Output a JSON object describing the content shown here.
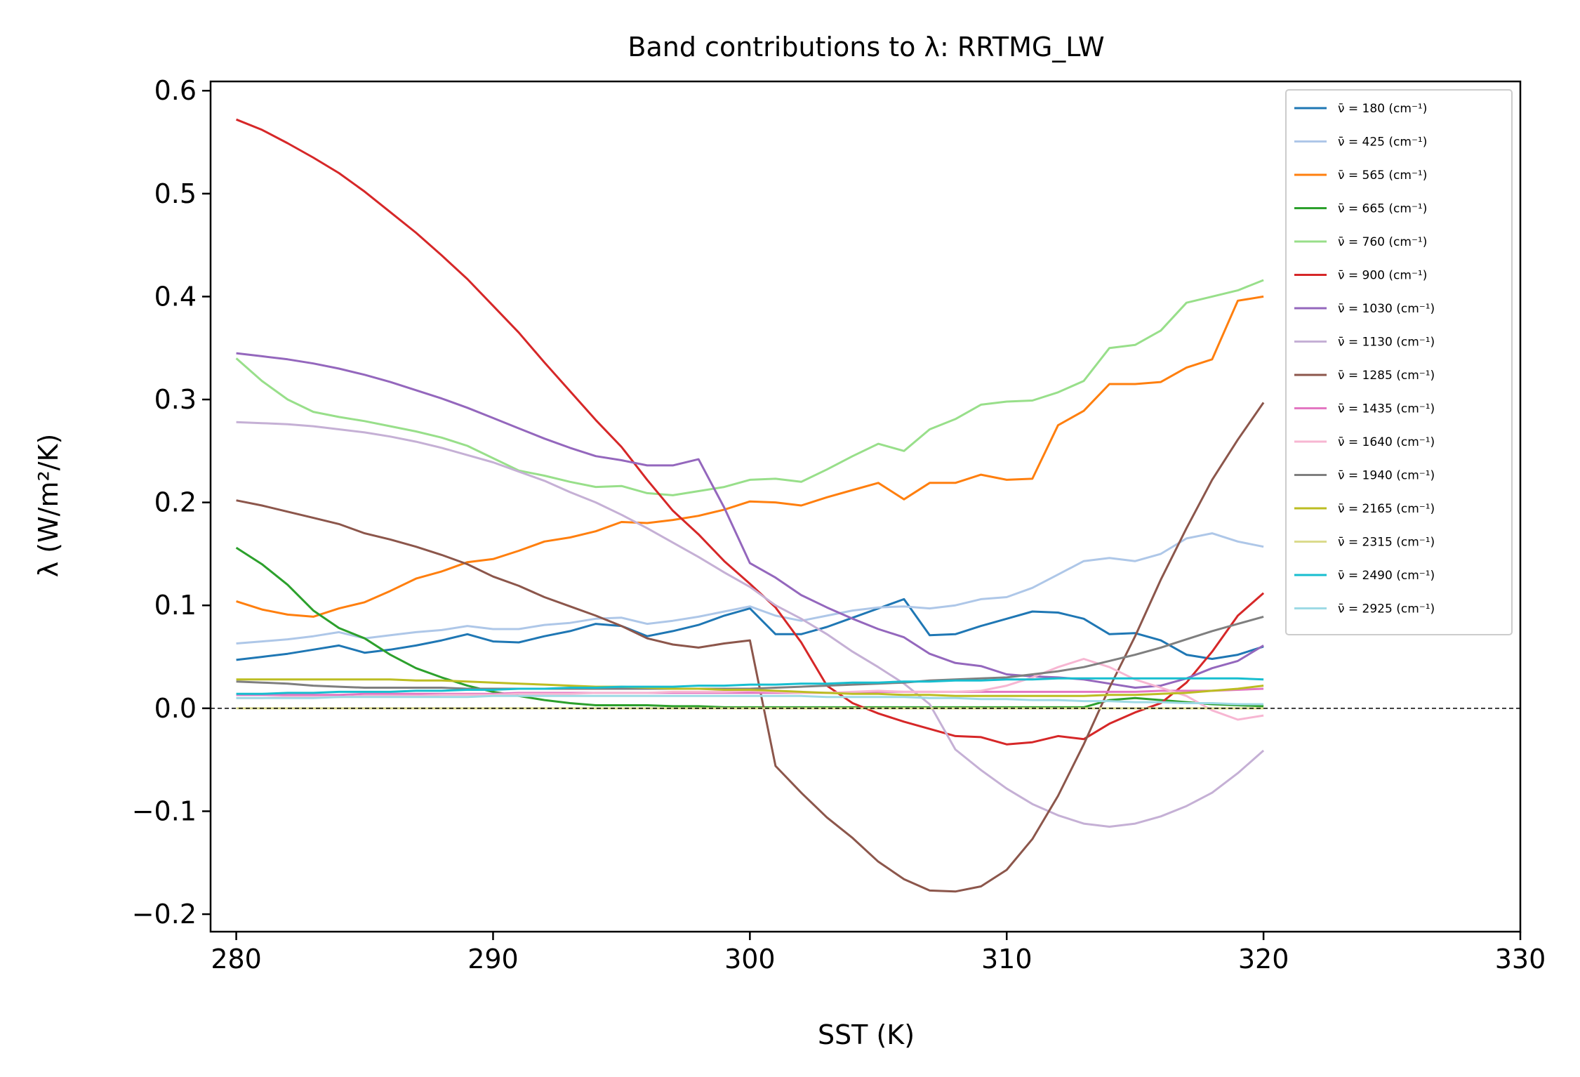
{
  "chart_data": {
    "type": "line",
    "title": "Band contributions to λ: RRTMG_LW",
    "xlabel": "SST (K)",
    "ylabel": "λ (W/m²/K)",
    "xlim": [
      279,
      330
    ],
    "ylim": [
      -0.217,
      0.609
    ],
    "xticks": [
      280,
      290,
      300,
      310,
      320,
      330
    ],
    "xtick_labels": [
      "280",
      "290",
      "300",
      "310",
      "320",
      "330"
    ],
    "yticks": [
      -0.2,
      -0.1,
      0.0,
      0.1,
      0.2,
      0.3,
      0.4,
      0.5,
      0.6
    ],
    "ytick_labels": [
      "−0.2",
      "−0.1",
      "0.0",
      "0.1",
      "0.2",
      "0.3",
      "0.4",
      "0.5",
      "0.6"
    ],
    "zero_line": "dashed",
    "legend_position": "top-right",
    "grid": false,
    "x": [
      280,
      281,
      282,
      283,
      284,
      285,
      286,
      287,
      288,
      289,
      290,
      291,
      292,
      293,
      294,
      295,
      296,
      297,
      298,
      299,
      300,
      301,
      302,
      303,
      304,
      305,
      306,
      307,
      308,
      309,
      310,
      311,
      312,
      313,
      314,
      315,
      316,
      317,
      318,
      319,
      320
    ],
    "series": [
      {
        "name": "ν̄ = 180 (cm⁻¹)",
        "color": "#1f77b4",
        "values": [
          0.047,
          0.05,
          0.053,
          0.057,
          0.061,
          0.054,
          0.057,
          0.061,
          0.066,
          0.072,
          0.065,
          0.064,
          0.07,
          0.075,
          0.082,
          0.08,
          0.07,
          0.075,
          0.081,
          0.09,
          0.097,
          0.072,
          0.072,
          0.079,
          0.088,
          0.097,
          0.106,
          0.071,
          0.072,
          0.08,
          0.087,
          0.094,
          0.093,
          0.087,
          0.072,
          0.073,
          0.066,
          0.052,
          0.048,
          0.052,
          0.06
        ]
      },
      {
        "name": "ν̄ = 425 (cm⁻¹)",
        "color": "#aec7e8",
        "values": [
          0.063,
          0.065,
          0.067,
          0.07,
          0.074,
          0.068,
          0.071,
          0.074,
          0.076,
          0.08,
          0.077,
          0.077,
          0.081,
          0.083,
          0.087,
          0.088,
          0.082,
          0.085,
          0.089,
          0.094,
          0.099,
          0.09,
          0.085,
          0.09,
          0.095,
          0.098,
          0.099,
          0.097,
          0.1,
          0.106,
          0.108,
          0.117,
          0.13,
          0.143,
          0.146,
          0.143,
          0.15,
          0.165,
          0.17,
          0.162,
          0.157
        ]
      },
      {
        "name": "ν̄ = 565 (cm⁻¹)",
        "color": "#ff7f0e",
        "values": [
          0.104,
          0.096,
          0.091,
          0.089,
          0.097,
          0.103,
          0.114,
          0.126,
          0.133,
          0.142,
          0.145,
          0.153,
          0.162,
          0.166,
          0.172,
          0.181,
          0.18,
          0.183,
          0.187,
          0.193,
          0.201,
          0.2,
          0.197,
          0.205,
          0.212,
          0.219,
          0.203,
          0.219,
          0.219,
          0.227,
          0.222,
          0.223,
          0.275,
          0.289,
          0.315,
          0.315,
          0.317,
          0.331,
          0.339,
          0.396,
          0.4
        ]
      },
      {
        "name": "ν̄ = 665 (cm⁻¹)",
        "color": "#2ca02c",
        "values": [
          0.156,
          0.14,
          0.12,
          0.095,
          0.078,
          0.068,
          0.052,
          0.039,
          0.03,
          0.022,
          0.016,
          0.012,
          0.008,
          0.005,
          0.003,
          0.003,
          0.003,
          0.002,
          0.002,
          0.001,
          0.001,
          0.001,
          0.001,
          0.001,
          0.001,
          0.001,
          0.001,
          0.001,
          0.001,
          0.001,
          0.001,
          0.001,
          0.001,
          0.001,
          0.008,
          0.01,
          0.008,
          0.006,
          0.004,
          0.003,
          0.002
        ]
      },
      {
        "name": "ν̄ = 760 (cm⁻¹)",
        "color": "#98df8a",
        "values": [
          0.34,
          0.318,
          0.3,
          0.288,
          0.283,
          0.279,
          0.274,
          0.269,
          0.263,
          0.255,
          0.243,
          0.231,
          0.226,
          0.22,
          0.215,
          0.216,
          0.209,
          0.207,
          0.211,
          0.215,
          0.222,
          0.223,
          0.22,
          0.232,
          0.245,
          0.257,
          0.25,
          0.271,
          0.281,
          0.295,
          0.298,
          0.299,
          0.307,
          0.318,
          0.35,
          0.353,
          0.367,
          0.394,
          0.4,
          0.406,
          0.416
        ]
      },
      {
        "name": "ν̄ = 900 (cm⁻¹)",
        "color": "#d62728",
        "values": [
          0.572,
          0.562,
          0.549,
          0.535,
          0.52,
          0.502,
          0.482,
          0.462,
          0.44,
          0.417,
          0.391,
          0.365,
          0.336,
          0.308,
          0.28,
          0.254,
          0.222,
          0.192,
          0.169,
          0.143,
          0.121,
          0.098,
          0.064,
          0.022,
          0.005,
          -0.005,
          -0.013,
          -0.02,
          -0.027,
          -0.028,
          -0.035,
          -0.033,
          -0.027,
          -0.03,
          -0.015,
          -0.004,
          0.005,
          0.025,
          0.055,
          0.09,
          0.112
        ]
      },
      {
        "name": "ν̄ = 1030 (cm⁻¹)",
        "color": "#9467bd",
        "values": [
          0.345,
          0.342,
          0.339,
          0.335,
          0.33,
          0.324,
          0.317,
          0.309,
          0.301,
          0.292,
          0.282,
          0.272,
          0.262,
          0.253,
          0.245,
          0.241,
          0.236,
          0.236,
          0.242,
          0.195,
          0.141,
          0.127,
          0.11,
          0.098,
          0.087,
          0.077,
          0.069,
          0.053,
          0.044,
          0.041,
          0.033,
          0.031,
          0.03,
          0.028,
          0.024,
          0.02,
          0.022,
          0.029,
          0.039,
          0.046,
          0.061
        ]
      },
      {
        "name": "ν̄ = 1130 (cm⁻¹)",
        "color": "#c5b0d5",
        "values": [
          0.278,
          0.277,
          0.276,
          0.274,
          0.271,
          0.268,
          0.264,
          0.259,
          0.253,
          0.246,
          0.239,
          0.23,
          0.221,
          0.21,
          0.2,
          0.188,
          0.175,
          0.161,
          0.147,
          0.132,
          0.118,
          0.1,
          0.087,
          0.072,
          0.055,
          0.04,
          0.024,
          0.004,
          -0.04,
          -0.06,
          -0.078,
          -0.093,
          -0.104,
          -0.112,
          -0.115,
          -0.112,
          -0.105,
          -0.095,
          -0.082,
          -0.063,
          -0.041
        ]
      },
      {
        "name": "ν̄ = 1285 (cm⁻¹)",
        "color": "#8c564b",
        "values": [
          0.202,
          0.197,
          0.191,
          0.185,
          0.179,
          0.17,
          0.164,
          0.157,
          0.149,
          0.14,
          0.128,
          0.119,
          0.108,
          0.099,
          0.09,
          0.08,
          0.068,
          0.062,
          0.059,
          0.063,
          0.066,
          -0.056,
          -0.082,
          -0.106,
          -0.126,
          -0.149,
          -0.166,
          -0.177,
          -0.178,
          -0.173,
          -0.157,
          -0.127,
          -0.085,
          -0.035,
          0.02,
          0.07,
          0.125,
          0.175,
          0.222,
          0.261,
          0.297
        ]
      },
      {
        "name": "ν̄ = 1435 (cm⁻¹)",
        "color": "#e377c2",
        "values": [
          0.013,
          0.013,
          0.013,
          0.013,
          0.013,
          0.014,
          0.014,
          0.014,
          0.014,
          0.014,
          0.014,
          0.015,
          0.015,
          0.015,
          0.015,
          0.015,
          0.015,
          0.015,
          0.015,
          0.015,
          0.015,
          0.015,
          0.015,
          0.015,
          0.015,
          0.016,
          0.016,
          0.016,
          0.016,
          0.016,
          0.016,
          0.016,
          0.016,
          0.016,
          0.016,
          0.016,
          0.017,
          0.017,
          0.017,
          0.018,
          0.019
        ]
      },
      {
        "name": "ν̄ = 1640 (cm⁻¹)",
        "color": "#f7b6d2",
        "values": [
          0.01,
          0.01,
          0.011,
          0.011,
          0.011,
          0.012,
          0.012,
          0.012,
          0.013,
          0.013,
          0.013,
          0.014,
          0.014,
          0.014,
          0.015,
          0.015,
          0.015,
          0.016,
          0.016,
          0.016,
          0.017,
          0.016,
          0.015,
          0.015,
          0.016,
          0.017,
          0.016,
          0.016,
          0.016,
          0.017,
          0.022,
          0.03,
          0.04,
          0.048,
          0.04,
          0.028,
          0.02,
          0.012,
          -0.002,
          -0.011,
          -0.007
        ]
      },
      {
        "name": "ν̄ = 1940 (cm⁻¹)",
        "color": "#7f7f7f",
        "values": [
          0.026,
          0.025,
          0.024,
          0.022,
          0.021,
          0.02,
          0.02,
          0.02,
          0.02,
          0.019,
          0.019,
          0.019,
          0.019,
          0.019,
          0.019,
          0.019,
          0.019,
          0.019,
          0.019,
          0.019,
          0.019,
          0.02,
          0.021,
          0.022,
          0.023,
          0.024,
          0.025,
          0.027,
          0.028,
          0.029,
          0.03,
          0.033,
          0.036,
          0.04,
          0.046,
          0.052,
          0.059,
          0.067,
          0.075,
          0.082,
          0.089
        ]
      },
      {
        "name": "ν̄ = 2165 (cm⁻¹)",
        "color": "#bcbd22",
        "values": [
          0.028,
          0.028,
          0.028,
          0.028,
          0.028,
          0.028,
          0.028,
          0.027,
          0.027,
          0.026,
          0.025,
          0.024,
          0.023,
          0.022,
          0.021,
          0.021,
          0.02,
          0.019,
          0.019,
          0.018,
          0.018,
          0.017,
          0.016,
          0.015,
          0.014,
          0.014,
          0.013,
          0.013,
          0.012,
          0.012,
          0.012,
          0.012,
          0.012,
          0.012,
          0.013,
          0.013,
          0.014,
          0.015,
          0.017,
          0.019,
          0.022
        ]
      },
      {
        "name": "ν̄ = 2315 (cm⁻¹)",
        "color": "#dbdb8d",
        "values": [
          0.0,
          0.0,
          0.0,
          0.0,
          0.0,
          0.0,
          0.0,
          0.0,
          0.0,
          0.0,
          0.0,
          0.0,
          0.0,
          0.0,
          0.0,
          0.0,
          0.0,
          0.0,
          0.0,
          0.0,
          0.0,
          0.0,
          0.0,
          0.0,
          0.0,
          0.0,
          0.0,
          0.0,
          0.0,
          0.0,
          0.0,
          0.0,
          0.0,
          0.0,
          0.0,
          0.0,
          0.0,
          0.0,
          0.0,
          0.0,
          0.0
        ]
      },
      {
        "name": "ν̄ = 2490 (cm⁻¹)",
        "color": "#17becf",
        "values": [
          0.014,
          0.014,
          0.015,
          0.015,
          0.016,
          0.016,
          0.016,
          0.017,
          0.017,
          0.018,
          0.018,
          0.019,
          0.019,
          0.02,
          0.02,
          0.021,
          0.021,
          0.021,
          0.022,
          0.022,
          0.023,
          0.023,
          0.024,
          0.024,
          0.025,
          0.025,
          0.026,
          0.026,
          0.027,
          0.027,
          0.028,
          0.028,
          0.029,
          0.029,
          0.029,
          0.029,
          0.029,
          0.029,
          0.029,
          0.029,
          0.028
        ]
      },
      {
        "name": "ν̄ = 2925 (cm⁻¹)",
        "color": "#9edae5",
        "values": [
          0.01,
          0.01,
          0.01,
          0.01,
          0.011,
          0.011,
          0.011,
          0.011,
          0.011,
          0.011,
          0.012,
          0.012,
          0.012,
          0.012,
          0.012,
          0.012,
          0.012,
          0.012,
          0.012,
          0.012,
          0.012,
          0.012,
          0.012,
          0.011,
          0.011,
          0.011,
          0.011,
          0.01,
          0.01,
          0.009,
          0.009,
          0.008,
          0.008,
          0.007,
          0.007,
          0.006,
          0.006,
          0.005,
          0.005,
          0.004,
          0.004
        ]
      }
    ]
  }
}
